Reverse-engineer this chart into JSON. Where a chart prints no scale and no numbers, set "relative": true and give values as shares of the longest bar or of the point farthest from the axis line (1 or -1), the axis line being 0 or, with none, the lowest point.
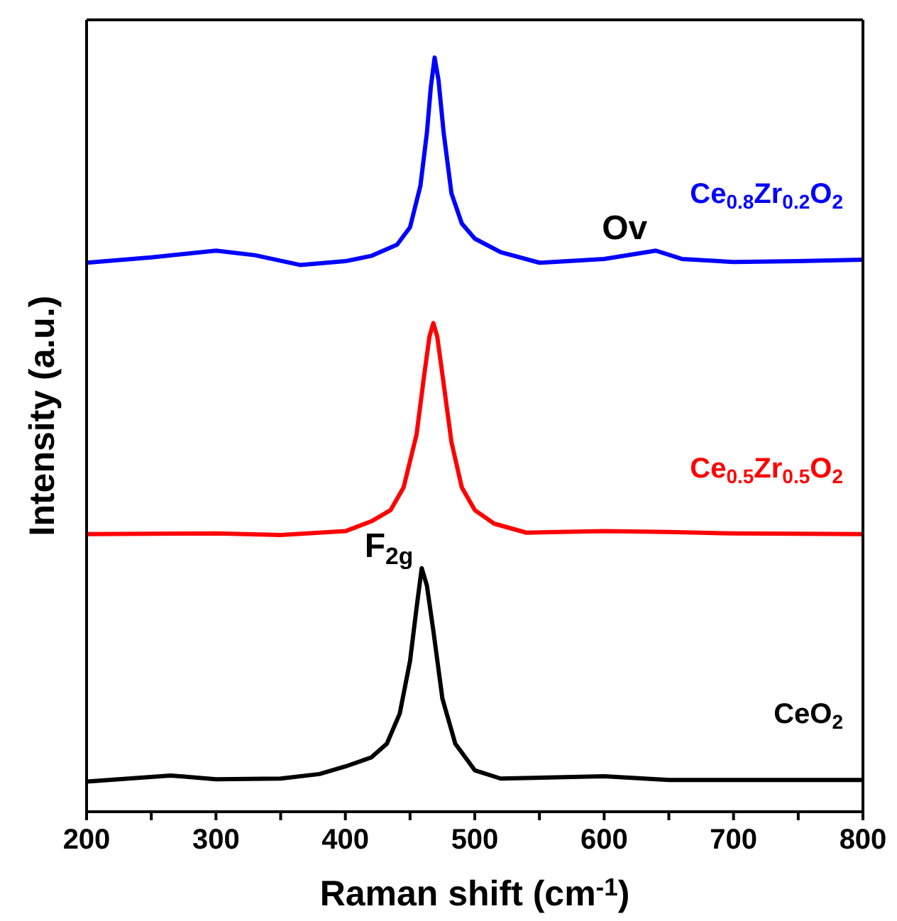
{
  "chart_data": {
    "type": "line",
    "relative": true,
    "xlabel": "Raman shift (cm$^{-1}$)",
    "ylabel": "Intensity (a.u.)",
    "xlim": [
      200,
      800
    ],
    "xticks": [
      200,
      {
        "value": 250,
        "label": null
      },
      300,
      {
        "value": 350,
        "label": null
      },
      400,
      {
        "value": 450,
        "label": null
      },
      500,
      {
        "value": 550,
        "label": null
      },
      600,
      {
        "value": 650,
        "label": null
      },
      700,
      {
        "value": 750,
        "label": null
      },
      800
    ],
    "marker": "none",
    "line_style": "solid",
    "series": [
      {
        "name": "Ce$_{0.8}$Zr$_{0.2}$O$_{2}$",
        "color": "#0000ff",
        "x": [
          200,
          250,
          300,
          330,
          365,
          400,
          420,
          440,
          450,
          458,
          463,
          466,
          469,
          472,
          476,
          482,
          490,
          500,
          520,
          550,
          600,
          640,
          660,
          700,
          750,
          800
        ],
        "values": [
          0.728,
          0.735,
          0.744,
          0.738,
          0.725,
          0.73,
          0.737,
          0.752,
          0.775,
          0.83,
          0.9,
          0.96,
          1.0,
          0.97,
          0.9,
          0.82,
          0.78,
          0.76,
          0.742,
          0.728,
          0.733,
          0.744,
          0.733,
          0.729,
          0.73,
          0.732
        ]
      },
      {
        "name": "Ce$_{0.5}$Zr$_{0.5}$O$_{2}$",
        "color": "#ff0000",
        "x": [
          200,
          300,
          350,
          400,
          420,
          435,
          445,
          455,
          461,
          465,
          468,
          471,
          475,
          482,
          490,
          500,
          515,
          540,
          600,
          650,
          700,
          800
        ],
        "values": [
          0.368,
          0.369,
          0.367,
          0.372,
          0.385,
          0.4,
          0.43,
          0.5,
          0.58,
          0.63,
          0.648,
          0.63,
          0.58,
          0.49,
          0.43,
          0.4,
          0.382,
          0.37,
          0.372,
          0.371,
          0.369,
          0.368
        ]
      },
      {
        "name": "CeO$_{2}$",
        "color": "#000000",
        "x": [
          200,
          265,
          300,
          350,
          380,
          400,
          420,
          432,
          442,
          450,
          455,
          459,
          463,
          468,
          475,
          485,
          500,
          520,
          600,
          650,
          800
        ],
        "values": [
          0.04,
          0.048,
          0.043,
          0.044,
          0.05,
          0.06,
          0.072,
          0.09,
          0.13,
          0.2,
          0.27,
          0.323,
          0.3,
          0.24,
          0.15,
          0.09,
          0.055,
          0.044,
          0.047,
          0.042,
          0.042
        ]
      }
    ],
    "annotations": [
      {
        "text": "Ov",
        "x": 640,
        "y": 0.744
      },
      {
        "text": "F$_{2g}$",
        "x": 459,
        "y": 0.323
      }
    ]
  }
}
